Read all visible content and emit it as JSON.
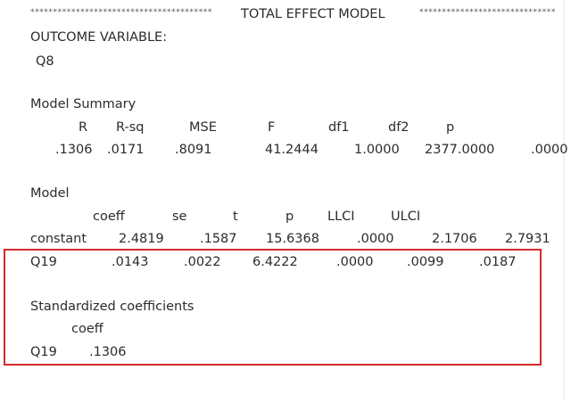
{
  "banner": {
    "left": "****************************************",
    "title": "TOTAL EFFECT MODEL",
    "right": "******************************"
  },
  "outcome": {
    "label": "OUTCOME VARIABLE:",
    "value": "Q8"
  },
  "model_summary": {
    "title": "Model Summary",
    "columns": [
      "R",
      "R-sq",
      "MSE",
      "F",
      "df1",
      "df2",
      "p"
    ],
    "rows": [
      [
        ".1306",
        ".0171",
        ".8091",
        "41.2444",
        "1.0000",
        "2377.0000",
        ".0000"
      ]
    ]
  },
  "model": {
    "title": "Model",
    "columns": [
      "coeff",
      "se",
      "t",
      "p",
      "LLCI",
      "ULCI"
    ],
    "rows": [
      [
        "constant",
        "2.4819",
        ".1587",
        "15.6368",
        ".0000",
        "2.1706",
        "2.7931"
      ],
      [
        "Q19",
        ".0143",
        ".0022",
        "6.4222",
        ".0000",
        ".0099",
        ".0187"
      ]
    ]
  },
  "standardized": {
    "title": "Standardized coefficients",
    "columns": [
      "coeff"
    ],
    "rows": [
      [
        "Q19",
        ".1306"
      ]
    ]
  }
}
